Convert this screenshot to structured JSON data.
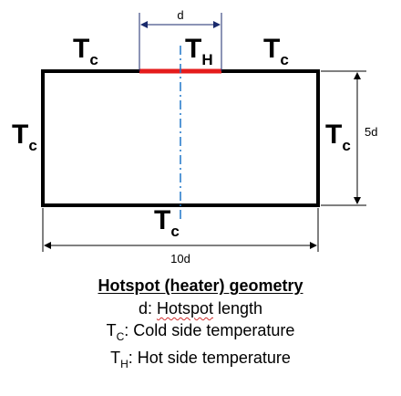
{
  "diagram": {
    "labels": {
      "top_left": {
        "main": "T",
        "sub": "c"
      },
      "top_center": {
        "main": "T",
        "sub": "H"
      },
      "top_right": {
        "main": "T",
        "sub": "c"
      },
      "left": {
        "main": "T",
        "sub": "c"
      },
      "right": {
        "main": "T",
        "sub": "c"
      },
      "bottom": {
        "main": "T",
        "sub": "c"
      }
    },
    "dimensions": {
      "heater_width": "d",
      "height": "5d",
      "width": "10d"
    },
    "colors": {
      "outline": "#000000",
      "heater": "#e51c1c",
      "centerline": "#1f77c8",
      "dimension_line": "#1a2a6c"
    }
  },
  "caption": {
    "title": "Hotspot (heater) geometry",
    "line1_prefix": "d: ",
    "line1_word": "Hotspot",
    "line1_rest": " length",
    "line2_main": "T",
    "line2_sub": "C",
    "line2_rest": ": Cold side temperature",
    "line3_main": "T",
    "line3_sub": "H",
    "line3_rest": ": Hot side temperature"
  }
}
